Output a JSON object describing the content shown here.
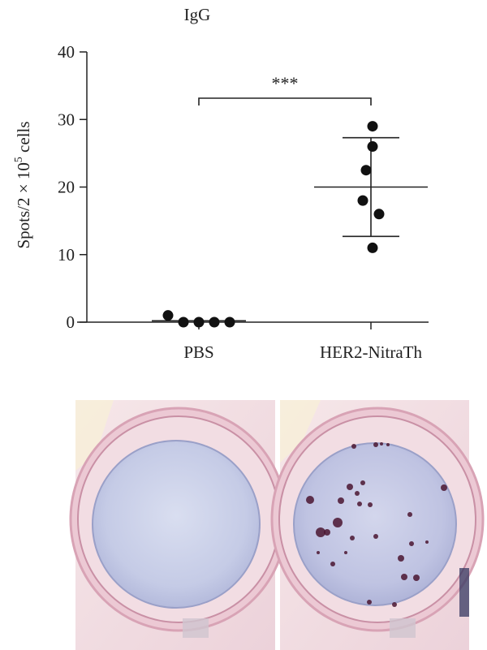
{
  "chart_data": {
    "type": "scatter",
    "title": "IgG",
    "ylabel_parts": {
      "prefix": "Spots/2 × 10",
      "sup": "5",
      "suffix": " cells"
    },
    "ylim": [
      0,
      40
    ],
    "yticks": [
      0,
      10,
      20,
      30,
      40
    ],
    "categories": [
      "PBS",
      "HER2-NitraTh"
    ],
    "groups": [
      {
        "category": "PBS",
        "values": [
          1,
          0,
          0,
          0,
          0
        ],
        "mean": 0.2,
        "sd_low": 0.2,
        "sd_high": 0.2
      },
      {
        "category": "HER2-NitraTh",
        "values": [
          29,
          26,
          22.5,
          18,
          16,
          11
        ],
        "mean": 20,
        "sd_low": 12.7,
        "sd_high": 27.3
      }
    ],
    "significance": {
      "label": "***",
      "between": [
        "PBS",
        "HER2-NitraTh"
      ]
    },
    "grid": false,
    "legend": "none"
  },
  "photos": {
    "left_well": {
      "description_name": "pbs-well",
      "spots": 0
    },
    "right_well": {
      "description_name": "her2-well",
      "spots": 28
    }
  }
}
